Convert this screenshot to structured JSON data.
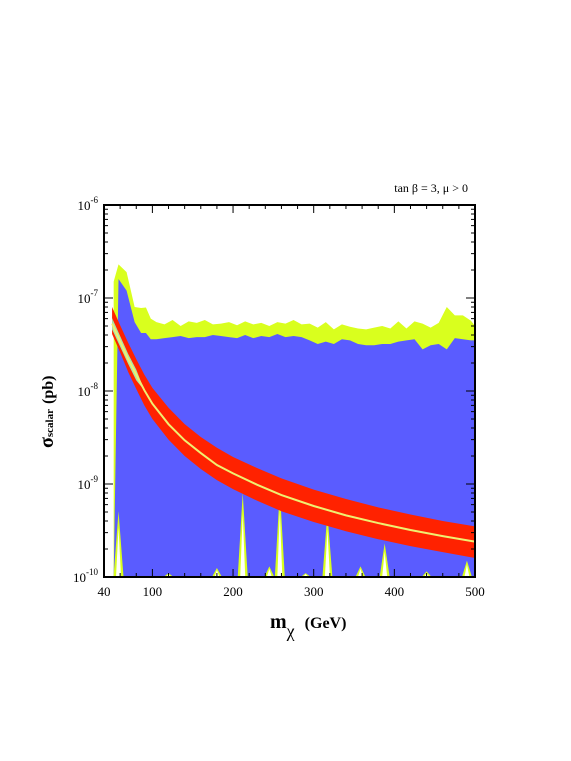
{
  "chart_data": {
    "type": "area",
    "annotation": "tan β = 3, μ > 0",
    "xlabel": "m",
    "xlabel_sub": "χ",
    "xlabel_unit": "(GeV)",
    "ylabel": "σ",
    "ylabel_sub": "scalar",
    "ylabel_unit": "(pb)",
    "xlim": [
      40,
      500
    ],
    "ylim": [
      1e-10,
      1e-06
    ],
    "yscale": "log",
    "x_ticks": [
      40,
      100,
      200,
      300,
      400,
      500
    ],
    "y_ticks": [
      {
        "base": "10",
        "exp": "-10",
        "value": 1e-10
      },
      {
        "base": "10",
        "exp": "-9",
        "value": 1e-09
      },
      {
        "base": "10",
        "exp": "-8",
        "value": 1e-08
      },
      {
        "base": "10",
        "exp": "-7",
        "value": 1e-07
      },
      {
        "base": "10",
        "exp": "-6",
        "value": 1e-06
      }
    ],
    "colors": {
      "blue_region": "#5a5cff",
      "yellow_region": "#d9ff1e",
      "red_band": "#ff2200",
      "center_line": "#f0f070",
      "inner_band": "#a8e8a8"
    },
    "series": [
      {
        "region": "yellow",
        "x": [
          52,
          58,
          68,
          78,
          86,
          92,
          98,
          105,
          115,
          125,
          135,
          145,
          155,
          165,
          175,
          185,
          195,
          205,
          215,
          225,
          235,
          245,
          255,
          265,
          275,
          285,
          295,
          305,
          315,
          325,
          335,
          345,
          355,
          365,
          375,
          385,
          395,
          405,
          415,
          425,
          435,
          445,
          455,
          465,
          475,
          485,
          495,
          500
        ],
        "y_upper": [
          1.5e-07,
          2.3e-07,
          1.9e-07,
          8e-08,
          7.8e-08,
          7.9e-08,
          6e-08,
          5.5e-08,
          5.2e-08,
          5.8e-08,
          5e-08,
          5.6e-08,
          5.4e-08,
          5.8e-08,
          5.2e-08,
          5.3e-08,
          5.5e-08,
          5.1e-08,
          5.6e-08,
          5.2e-08,
          5.4e-08,
          5e-08,
          5.5e-08,
          5.3e-08,
          5.8e-08,
          5.2e-08,
          5.3e-08,
          4.8e-08,
          5.5e-08,
          4.6e-08,
          5.2e-08,
          4.9e-08,
          4.7e-08,
          4.6e-08,
          4.8e-08,
          5e-08,
          4.7e-08,
          5.6e-08,
          4.7e-08,
          5.6e-08,
          5.3e-08,
          4.8e-08,
          5.4e-08,
          8e-08,
          6.5e-08,
          6.5e-08,
          5.7e-08,
          5e-08
        ]
      },
      {
        "region": "blue",
        "x": [
          52,
          58,
          68,
          78,
          86,
          92,
          98,
          105,
          115,
          125,
          135,
          145,
          155,
          165,
          175,
          185,
          195,
          205,
          215,
          225,
          235,
          245,
          255,
          265,
          275,
          285,
          295,
          305,
          315,
          325,
          335,
          345,
          355,
          365,
          375,
          385,
          395,
          405,
          415,
          425,
          435,
          445,
          455,
          465,
          475,
          485,
          495,
          500
        ],
        "y_upper": [
          1e-10,
          1.6e-07,
          1.2e-07,
          5.5e-08,
          4.2e-08,
          4.2e-08,
          3.6e-08,
          3.6e-08,
          3.7e-08,
          3.8e-08,
          3.9e-08,
          3.7e-08,
          3.8e-08,
          3.8e-08,
          4e-08,
          3.9e-08,
          3.8e-08,
          3.7e-08,
          4e-08,
          3.7e-08,
          3.9e-08,
          3.8e-08,
          4.1e-08,
          3.8e-08,
          3.9e-08,
          3.8e-08,
          3.5e-08,
          3.2e-08,
          3.4e-08,
          3.2e-08,
          3.6e-08,
          3.5e-08,
          3.2e-08,
          3.1e-08,
          3.1e-08,
          3.2e-08,
          3.2e-08,
          3.4e-08,
          3.5e-08,
          3.6e-08,
          2.8e-08,
          3.1e-08,
          3.2e-08,
          2.8e-08,
          3.7e-08,
          3.6e-08,
          3.5e-08,
          3.5e-08
        ]
      },
      {
        "region": "red",
        "x": [
          50,
          60,
          70,
          80,
          90,
          100,
          120,
          140,
          160,
          180,
          200,
          230,
          260,
          300,
          340,
          380,
          420,
          460,
          500
        ],
        "y_lower": [
          4.1e-08,
          2.6e-08,
          1.6e-08,
          1.05e-08,
          7e-09,
          5e-09,
          3e-09,
          2e-09,
          1.45e-09,
          1.1e-09,
          8.8e-10,
          6.6e-10,
          5.1e-10,
          3.9e-10,
          3.1e-10,
          2.55e-10,
          2.15e-10,
          1.85e-10,
          1.6e-10
        ],
        "y_upper": [
          8e-08,
          5.1e-08,
          3.3e-08,
          2.2e-08,
          1.5e-08,
          1.08e-08,
          6.6e-09,
          4.4e-09,
          3.2e-09,
          2.45e-09,
          1.95e-09,
          1.48e-09,
          1.15e-09,
          8.7e-10,
          6.9e-10,
          5.6e-10,
          4.7e-10,
          4e-10,
          3.5e-10
        ]
      },
      {
        "region": "center",
        "x": [
          50,
          60,
          70,
          80,
          90,
          100,
          120,
          140,
          160,
          180,
          200,
          230,
          260,
          300,
          340,
          380,
          420,
          460,
          500
        ],
        "y": [
          5.3e-08,
          3.4e-08,
          2.2e-08,
          1.5e-08,
          1.02e-08,
          7.3e-09,
          4.4e-09,
          2.95e-09,
          2.15e-09,
          1.6e-09,
          1.3e-09,
          9.8e-10,
          7.6e-10,
          5.8e-10,
          4.6e-10,
          3.8e-10,
          3.2e-10,
          2.75e-10,
          2.4e-10
        ],
        "band_lower": [
          4.6e-08,
          3e-08,
          1.95e-08,
          1.3e-08
        ],
        "band_upper": [
          6.1e-08,
          3.9e-08,
          2.5e-08,
          1.7e-08
        ]
      }
    ],
    "spikes": {
      "x_centers": [
        58,
        120,
        180,
        212,
        245,
        258,
        290,
        317,
        358,
        388,
        440,
        490
      ],
      "y_tops": [
        5.1e-10,
        1.1e-10,
        1.25e-10,
        8e-10,
        1.3e-10,
        8.5e-10,
        1.1e-10,
        4.8e-10,
        1.3e-10,
        2.3e-10,
        1.15e-10,
        1.5e-10
      ]
    }
  }
}
